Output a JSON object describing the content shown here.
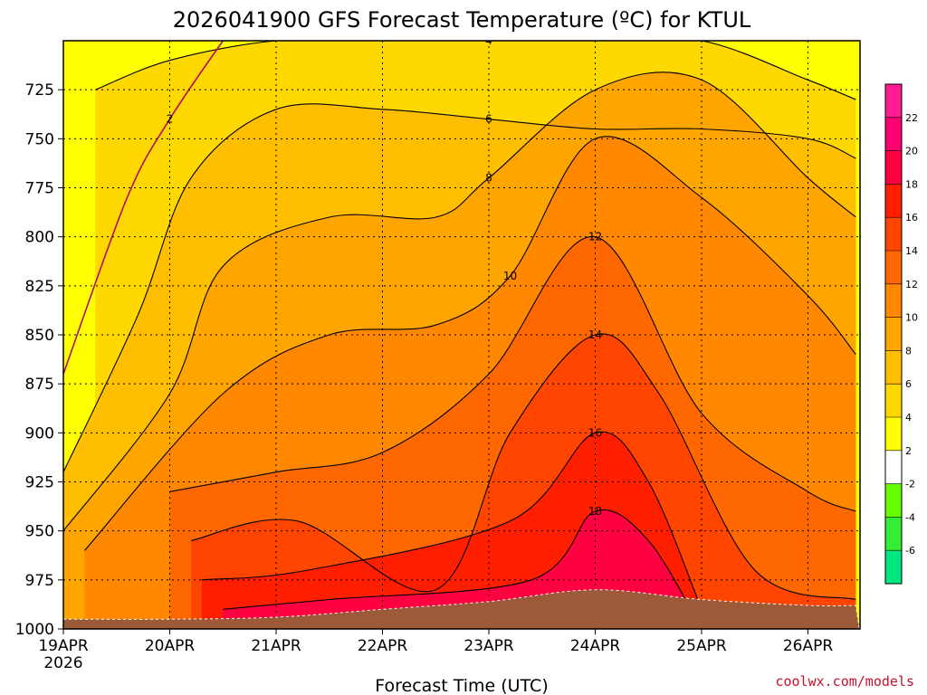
{
  "chart_data": {
    "type": "heatmap",
    "title": "2026041900 GFS Forecast Temperature (ºC) for KTUL",
    "xlabel": "Forecast Time (UTC)",
    "ylabel": "",
    "x_ticks": [
      "19APR",
      "20APR",
      "21APR",
      "22APR",
      "23APR",
      "24APR",
      "25APR",
      "26APR"
    ],
    "x_tick_sub": "2026",
    "y_ticks": [
      725,
      750,
      775,
      800,
      825,
      850,
      875,
      900,
      925,
      950,
      975,
      1000
    ],
    "ylim": [
      1000,
      700
    ],
    "xlim_days": [
      0,
      7.45
    ],
    "colorbar": {
      "levels": [
        -6,
        -4,
        -2,
        2,
        4,
        6,
        8,
        10,
        12,
        14,
        16,
        18,
        20,
        22
      ],
      "colors": [
        "#00e680",
        "#33ee33",
        "#66ff00",
        "#ffffff",
        "#ffff00",
        "#ffd800",
        "#ffbe00",
        "#ffa500",
        "#ff8800",
        "#ff6800",
        "#ff4500",
        "#ff1e00",
        "#ff0040",
        "#ff0070",
        "#ff1b90"
      ]
    },
    "series": [
      {
        "name": "4",
        "points": [
          [
            0.3,
            725
          ],
          [
            1.0,
            710
          ],
          [
            2.0,
            700
          ],
          [
            3.0,
            700
          ],
          [
            4.0,
            700
          ],
          [
            5.0,
            700
          ],
          [
            6.0,
            700
          ],
          [
            7.0,
            720
          ],
          [
            7.45,
            730
          ]
        ]
      },
      {
        "name": "2",
        "points": [
          [
            0.0,
            870
          ],
          [
            0.6,
            780
          ],
          [
            1.0,
            740
          ],
          [
            1.5,
            700
          ]
        ]
      },
      {
        "name": "6",
        "points": [
          [
            0.0,
            920
          ],
          [
            0.7,
            840
          ],
          [
            1.2,
            770
          ],
          [
            2.0,
            735
          ],
          [
            3.0,
            735
          ],
          [
            4.0,
            740
          ],
          [
            5.0,
            745
          ],
          [
            6.0,
            745
          ],
          [
            7.0,
            750
          ],
          [
            7.45,
            760
          ]
        ]
      },
      {
        "name": "8",
        "points": [
          [
            0.0,
            950
          ],
          [
            1.0,
            880
          ],
          [
            1.5,
            815
          ],
          [
            2.5,
            790
          ],
          [
            3.5,
            790
          ],
          [
            4.0,
            770
          ],
          [
            5.0,
            725
          ],
          [
            6.0,
            720
          ],
          [
            7.0,
            770
          ],
          [
            7.45,
            790
          ]
        ]
      },
      {
        "name": "10",
        "points": [
          [
            0.2,
            960
          ],
          [
            1.5,
            880
          ],
          [
            2.5,
            850
          ],
          [
            3.5,
            845
          ],
          [
            4.2,
            820
          ],
          [
            5.0,
            750
          ],
          [
            6.0,
            780
          ],
          [
            7.0,
            830
          ],
          [
            7.45,
            860
          ]
        ]
      },
      {
        "name": "12",
        "points": [
          [
            1.0,
            930
          ],
          [
            2.0,
            920
          ],
          [
            3.0,
            910
          ],
          [
            4.0,
            870
          ],
          [
            5.0,
            800
          ],
          [
            6.0,
            890
          ],
          [
            7.0,
            930
          ],
          [
            7.45,
            940
          ]
        ]
      },
      {
        "name": "14",
        "points": [
          [
            1.2,
            955
          ],
          [
            2.2,
            945
          ],
          [
            3.5,
            980
          ],
          [
            4.2,
            900
          ],
          [
            5.0,
            850
          ],
          [
            5.6,
            880
          ],
          [
            6.5,
            970
          ],
          [
            7.45,
            985
          ]
        ]
      },
      {
        "name": "16",
        "points": [
          [
            1.3,
            975
          ],
          [
            2.3,
            970
          ],
          [
            4.2,
            945
          ],
          [
            5.0,
            900
          ],
          [
            5.5,
            925
          ],
          [
            6.0,
            990
          ]
        ]
      },
      {
        "name": "18",
        "points": [
          [
            1.5,
            990
          ],
          [
            2.5,
            985
          ],
          [
            4.4,
            975
          ],
          [
            5.0,
            940
          ],
          [
            5.5,
            955
          ],
          [
            6.0,
            1000
          ]
        ]
      }
    ]
  },
  "credit": "coolwx.com/models"
}
